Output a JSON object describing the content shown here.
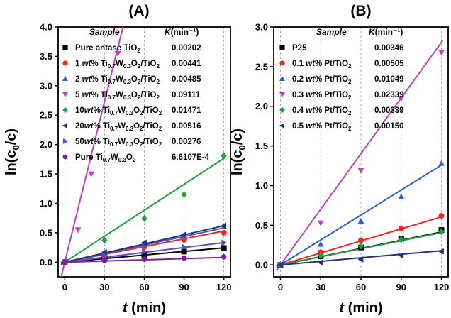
{
  "chart_data": [
    {
      "panel": "(A)",
      "type": "scatter",
      "title": "(A)",
      "xlabel_main": "t",
      "xlabel_unit": " (min)",
      "ylabel": "ln(c0/c)",
      "xlim": [
        -5,
        125
      ],
      "ylim": [
        -0.25,
        4.0
      ],
      "xticks": [
        0,
        30,
        60,
        90,
        120
      ],
      "yticks": [
        0.0,
        0.5,
        1.0,
        1.5,
        2.0,
        2.5,
        3.0,
        3.5,
        4.0
      ],
      "ytick_labels": [
        "0.0",
        "0.5",
        "1.0",
        "1.5",
        "2.0",
        "2.5",
        "3.0",
        "3.5",
        "4.0"
      ],
      "legend_header": {
        "sample": "Sample",
        "k": "K(min⁻¹)"
      },
      "grid": "dashed vertical",
      "legend": "top-left",
      "series": [
        {
          "name": "Pure antase TiO2",
          "k_label": "0.00202",
          "color": "#000000",
          "marker": "square",
          "k": 0.00202,
          "x": [
            0,
            30,
            60,
            90,
            120
          ],
          "y": [
            0.0,
            0.06,
            0.12,
            0.18,
            0.24
          ]
        },
        {
          "name": "1 wt% Ti0.7W0.3O2/TiO2",
          "k_label": "0.00441",
          "color": "#ff2020",
          "marker": "circle",
          "k": 0.00441,
          "x": [
            0,
            30,
            60,
            90,
            120
          ],
          "y": [
            0.0,
            0.13,
            0.26,
            0.38,
            0.5
          ]
        },
        {
          "name": "2 wt% Ti0.7W0.3O2/TiO2",
          "k_label": "0.00485",
          "color": "#3060c8",
          "marker": "triangle-up",
          "k": 0.00485,
          "x": [
            0,
            30,
            60,
            90,
            120
          ],
          "y": [
            0.0,
            0.15,
            0.3,
            0.45,
            0.6
          ]
        },
        {
          "name": "5 wt% Ti0.7W0.3O2/TiO2",
          "k_label": "0.09111",
          "color": "#c040c0",
          "marker": "triangle-down",
          "k": 0.09111,
          "x": [
            0,
            10,
            20,
            30,
            40
          ],
          "y": [
            0.0,
            0.55,
            1.5,
            2.85,
            3.55
          ]
        },
        {
          "name": "10wt% Ti0.7W0.3O2/TiO2",
          "k_label": "0.01471",
          "color": "#20a040",
          "marker": "diamond",
          "k": 0.01471,
          "x": [
            0,
            30,
            60,
            90,
            120
          ],
          "y": [
            0.0,
            0.37,
            0.74,
            1.15,
            1.81
          ]
        },
        {
          "name": "20wt% Ti0.7W0.3O2/TiO2",
          "k_label": "0.00516",
          "color": "#283080",
          "marker": "triangle-left",
          "k": 0.00516,
          "x": [
            0,
            30,
            60,
            90,
            120
          ],
          "y": [
            0.0,
            0.17,
            0.33,
            0.47,
            0.62
          ]
        },
        {
          "name": "50wt% Ti0.7W0.3O2/TiO2",
          "k_label": "0.00276",
          "color": "#6050c0",
          "marker": "triangle-right",
          "k": 0.00276,
          "x": [
            0,
            30,
            60,
            90,
            120
          ],
          "y": [
            0.0,
            0.09,
            0.18,
            0.26,
            0.33
          ]
        },
        {
          "name": "Pure Ti0.7W0.3O2",
          "k_label": "6.6107E-4",
          "color": "#7a20a0",
          "marker": "hexagon",
          "k": 0.00066107,
          "x": [
            0,
            30,
            60,
            90,
            120
          ],
          "y": [
            0.0,
            0.03,
            0.05,
            0.07,
            0.09
          ]
        }
      ]
    },
    {
      "panel": "(B)",
      "type": "scatter",
      "title": "(B)",
      "xlabel_main": "t",
      "xlabel_unit": " (min)",
      "ylabel": "ln(c0/c)",
      "xlim": [
        -5,
        125
      ],
      "ylim": [
        -0.15,
        3.0
      ],
      "xticks": [
        0,
        30,
        60,
        90,
        120
      ],
      "yticks": [
        0.0,
        0.5,
        1.0,
        1.5,
        2.0,
        2.5,
        3.0
      ],
      "ytick_labels": [
        "0.0",
        "0.5",
        "1.0",
        "1.5",
        "2.0",
        "2.5",
        "3.0"
      ],
      "legend_header": {
        "sample": "Sample",
        "k": "K(min⁻¹)"
      },
      "grid": "dashed vertical",
      "legend": "top-left",
      "series": [
        {
          "name": "P25",
          "k_label": "0.00346",
          "color": "#000000",
          "marker": "square",
          "k": 0.00346,
          "x": [
            0,
            30,
            60,
            90,
            120
          ],
          "y": [
            0.0,
            0.11,
            0.22,
            0.33,
            0.44
          ]
        },
        {
          "name": "0.1 wt% Pt/TiO2",
          "k_label": "0.00505",
          "color": "#ff2020",
          "marker": "circle",
          "k": 0.00505,
          "x": [
            0,
            30,
            60,
            90,
            120
          ],
          "y": [
            0.0,
            0.16,
            0.31,
            0.46,
            0.62
          ]
        },
        {
          "name": "0.2 wt% Pt/TiO2",
          "k_label": "0.01049",
          "color": "#3060c8",
          "marker": "triangle-up",
          "k": 0.01049,
          "x": [
            0,
            30,
            60,
            90,
            120
          ],
          "y": [
            0.0,
            0.26,
            0.55,
            0.86,
            1.28
          ]
        },
        {
          "name": "0.3 wt% Pt/TiO2",
          "k_label": "0.02339",
          "color": "#c040c0",
          "marker": "triangle-down",
          "k": 0.02339,
          "x": [
            0,
            30,
            60,
            90,
            120
          ],
          "y": [
            0.0,
            0.53,
            1.19,
            2.1,
            2.68
          ]
        },
        {
          "name": "0.4 wt% Pt/TiO2",
          "k_label": "0.00339",
          "color": "#20a040",
          "marker": "diamond",
          "k": 0.00339,
          "x": [
            0,
            30,
            60,
            90,
            120
          ],
          "y": [
            0.0,
            0.12,
            0.24,
            0.32,
            0.42
          ]
        },
        {
          "name": "0.5 wt% Pt/TiO2",
          "k_label": "0.00150",
          "color": "#283080",
          "marker": "triangle-left",
          "k": 0.0015,
          "x": [
            0,
            30,
            60,
            90,
            120
          ],
          "y": [
            0.0,
            0.03,
            0.07,
            0.12,
            0.17
          ]
        }
      ]
    }
  ]
}
